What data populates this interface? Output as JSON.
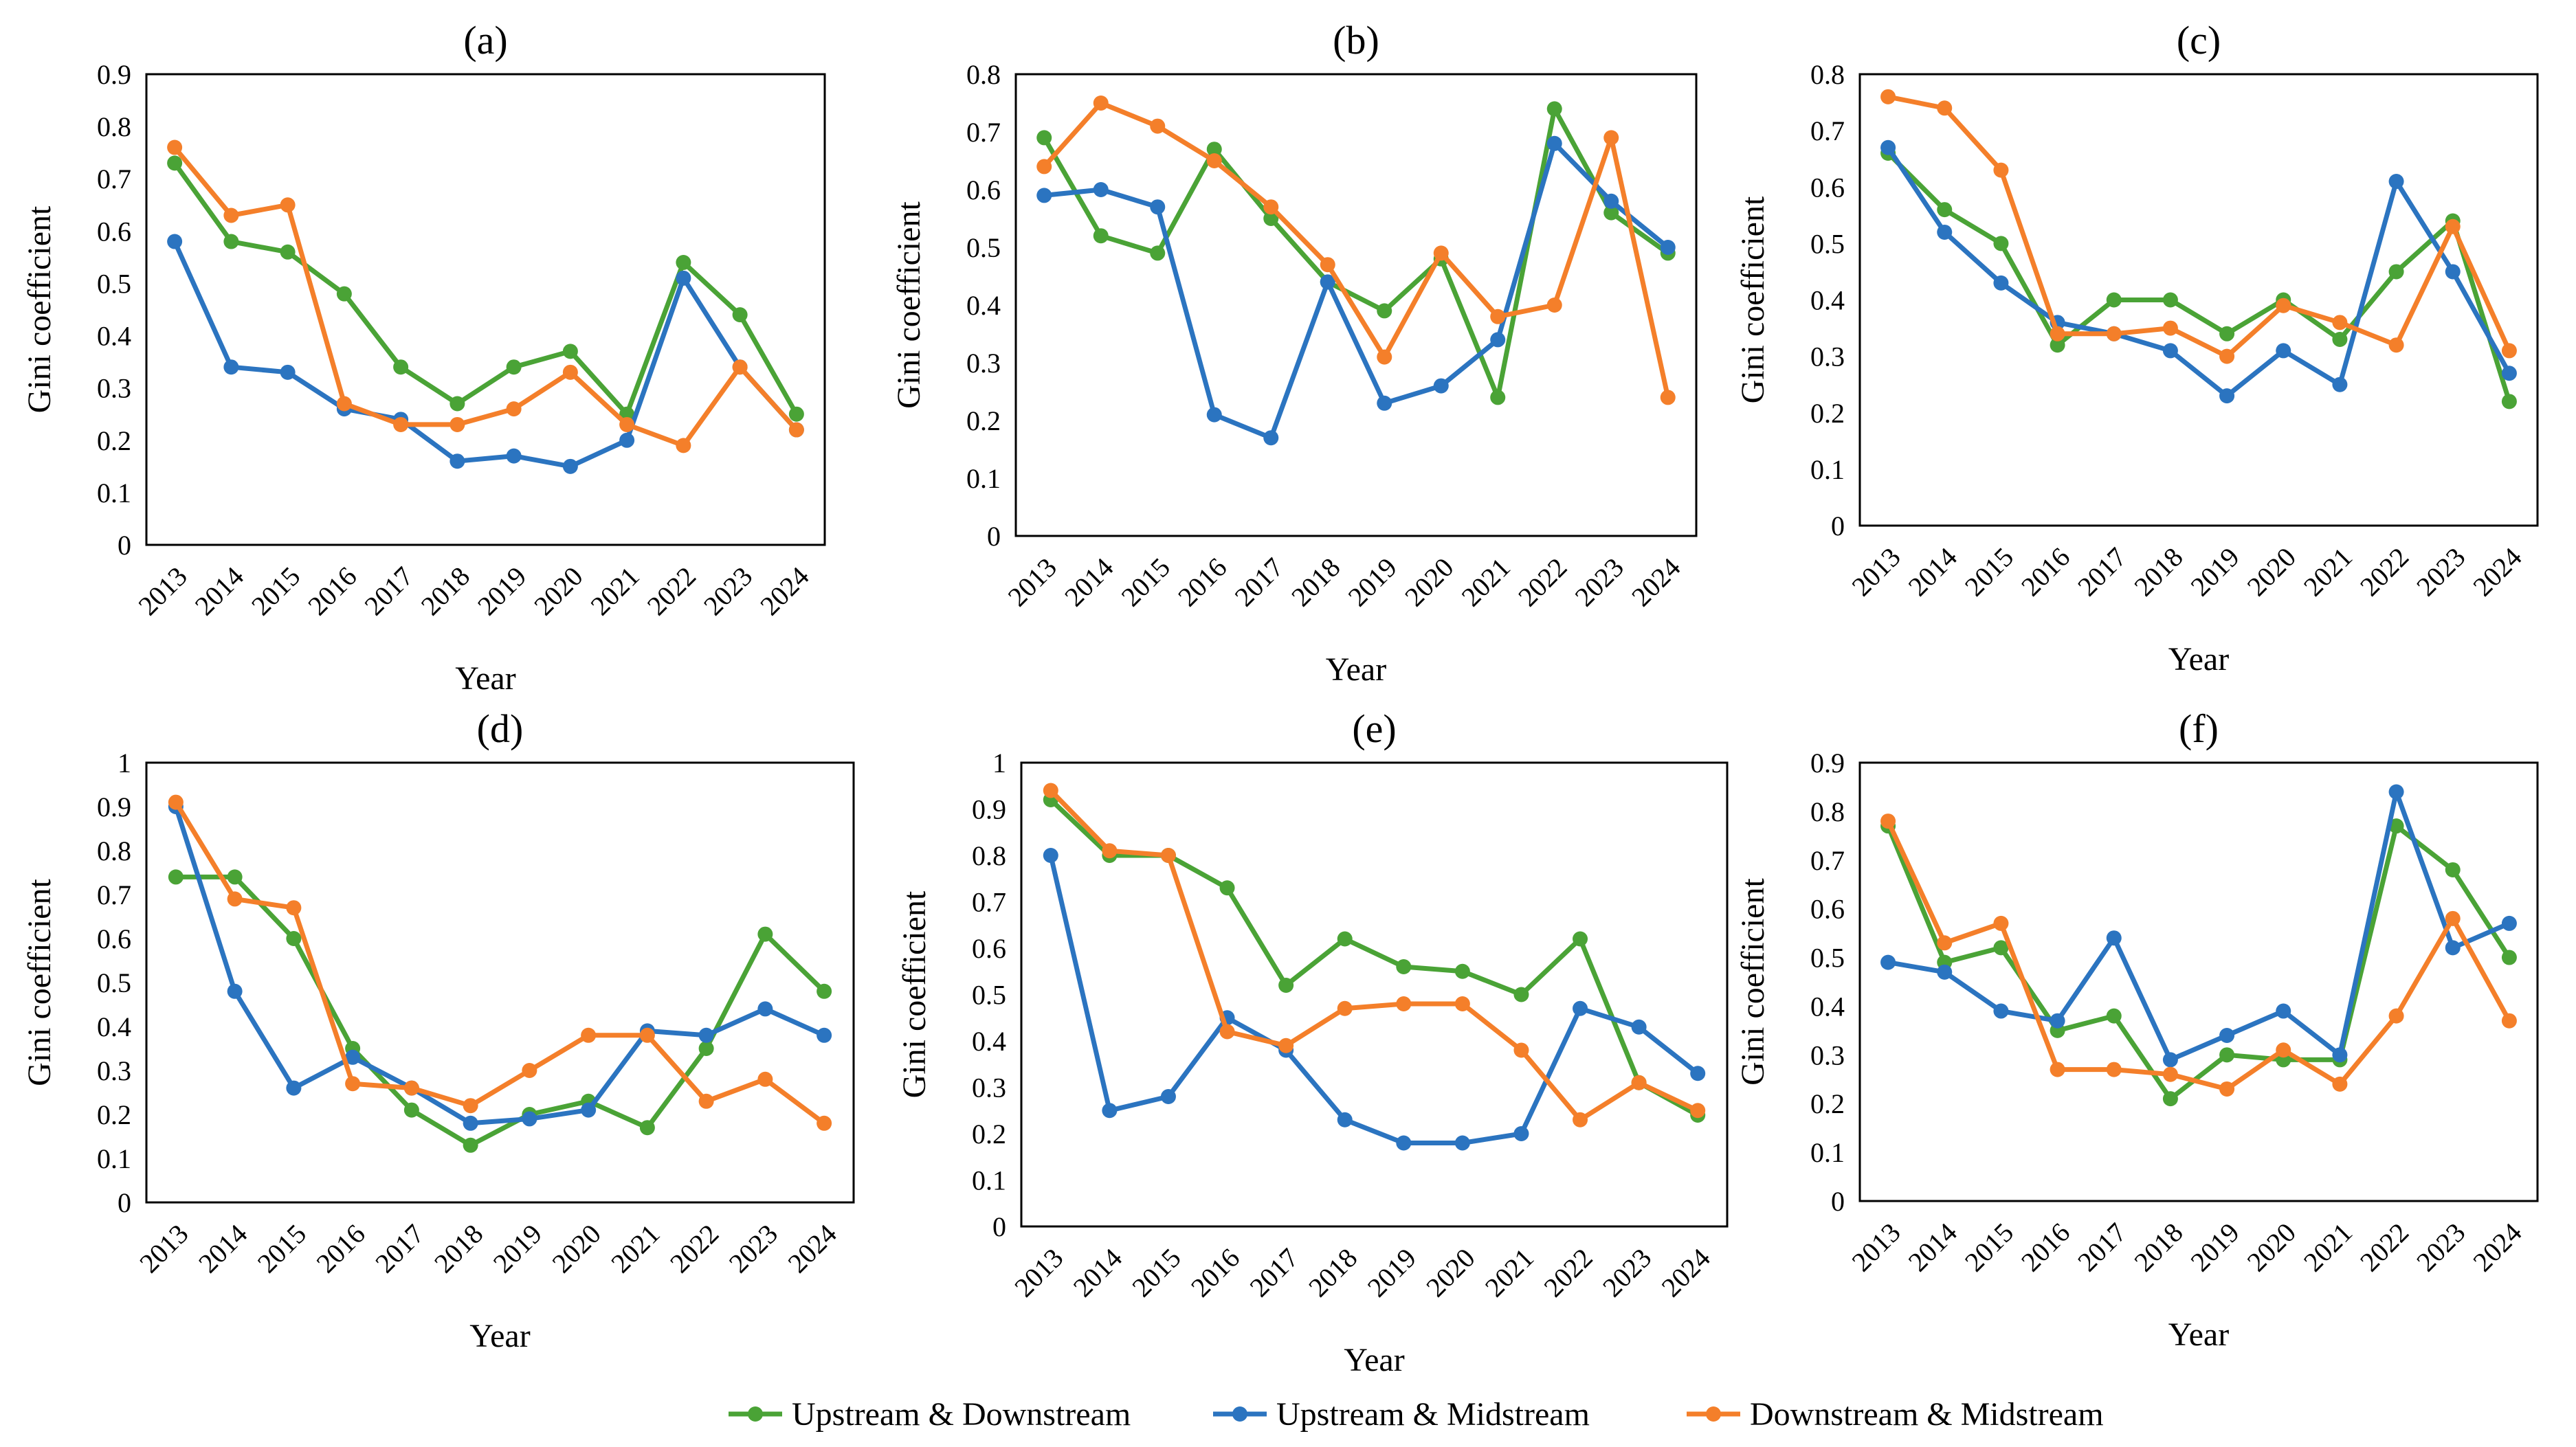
{
  "colors": {
    "Upstream & Downstream": "#4aa336",
    "Upstream & Midstream": "#2b74c0",
    "Downstream & Midstream": "#f47f2a"
  },
  "legend": {
    "items": [
      "Upstream & Downstream",
      "Upstream & Midstream",
      "Downstream & Midstream"
    ]
  },
  "chart_data": [
    {
      "type": "line",
      "title": "(a)",
      "xlabel": "Year",
      "ylabel": "Gini coefficient",
      "ylim": [
        0,
        0.9
      ],
      "yticks": [
        "0",
        "0.1",
        "0.2",
        "0.3",
        "0.4",
        "0.5",
        "0.6",
        "0.7",
        "0.8",
        "0.9"
      ],
      "categories": [
        "2013",
        "2014",
        "2015",
        "2016",
        "2017",
        "2018",
        "2019",
        "2020",
        "2021",
        "2022",
        "2023",
        "2024"
      ],
      "series": [
        {
          "name": "Upstream & Downstream",
          "values": [
            0.73,
            0.58,
            0.56,
            0.48,
            0.34,
            0.27,
            0.34,
            0.37,
            0.25,
            0.54,
            0.44,
            0.25
          ]
        },
        {
          "name": "Upstream & Midstream",
          "values": [
            0.58,
            0.34,
            0.33,
            0.26,
            0.24,
            0.16,
            0.17,
            0.15,
            0.2,
            0.51,
            0.34,
            0.22
          ]
        },
        {
          "name": "Downstream & Midstream",
          "values": [
            0.76,
            0.63,
            0.65,
            0.27,
            0.23,
            0.23,
            0.26,
            0.33,
            0.23,
            0.19,
            0.34,
            0.22
          ]
        }
      ]
    },
    {
      "type": "line",
      "title": "(b)",
      "xlabel": "Year",
      "ylabel": "Gini coefficient",
      "ylim": [
        0,
        0.8
      ],
      "yticks": [
        "0",
        "0.1",
        "0.2",
        "0.3",
        "0.4",
        "0.5",
        "0.6",
        "0.7",
        "0.8"
      ],
      "categories": [
        "2013",
        "2014",
        "2015",
        "2016",
        "2017",
        "2018",
        "2019",
        "2020",
        "2021",
        "2022",
        "2023",
        "2024"
      ],
      "series": [
        {
          "name": "Upstream & Downstream",
          "values": [
            0.69,
            0.52,
            0.49,
            0.67,
            0.55,
            0.44,
            0.39,
            0.48,
            0.24,
            0.74,
            0.56,
            0.49
          ]
        },
        {
          "name": "Upstream & Midstream",
          "values": [
            0.59,
            0.6,
            0.57,
            0.21,
            0.17,
            0.44,
            0.23,
            0.26,
            0.34,
            0.68,
            0.58,
            0.5
          ]
        },
        {
          "name": "Downstream & Midstream",
          "values": [
            0.64,
            0.75,
            0.71,
            0.65,
            0.57,
            0.47,
            0.31,
            0.49,
            0.38,
            0.4,
            0.69,
            0.24
          ]
        }
      ]
    },
    {
      "type": "line",
      "title": "(c)",
      "xlabel": "Year",
      "ylabel": "Gini coefficient",
      "ylim": [
        0,
        0.8
      ],
      "yticks": [
        "0",
        "0.1",
        "0.2",
        "0.3",
        "0.4",
        "0.5",
        "0.6",
        "0.7",
        "0.8"
      ],
      "categories": [
        "2013",
        "2014",
        "2015",
        "2016",
        "2017",
        "2018",
        "2019",
        "2020",
        "2021",
        "2022",
        "2023",
        "2024"
      ],
      "series": [
        {
          "name": "Upstream & Downstream",
          "values": [
            0.66,
            0.56,
            0.5,
            0.32,
            0.4,
            0.4,
            0.34,
            0.4,
            0.33,
            0.45,
            0.54,
            0.22
          ]
        },
        {
          "name": "Upstream & Midstream",
          "values": [
            0.67,
            0.52,
            0.43,
            0.36,
            0.34,
            0.31,
            0.23,
            0.31,
            0.25,
            0.61,
            0.45,
            0.27
          ]
        },
        {
          "name": "Downstream & Midstream",
          "values": [
            0.76,
            0.74,
            0.63,
            0.34,
            0.34,
            0.35,
            0.3,
            0.39,
            0.36,
            0.32,
            0.53,
            0.31
          ]
        }
      ]
    },
    {
      "type": "line",
      "title": "(d)",
      "xlabel": "Year",
      "ylabel": "Gini coefficient",
      "ylim": [
        0,
        1
      ],
      "yticks": [
        "0",
        "0.1",
        "0.2",
        "0.3",
        "0.4",
        "0.5",
        "0.6",
        "0.7",
        "0.8",
        "0.9",
        "1"
      ],
      "categories": [
        "2013",
        "2014",
        "2015",
        "2016",
        "2017",
        "2018",
        "2019",
        "2020",
        "2021",
        "2022",
        "2023",
        "2024"
      ],
      "series": [
        {
          "name": "Upstream & Downstream",
          "values": [
            0.74,
            0.74,
            0.6,
            0.35,
            0.21,
            0.13,
            0.2,
            0.23,
            0.17,
            0.35,
            0.61,
            0.48
          ]
        },
        {
          "name": "Upstream & Midstream",
          "values": [
            0.9,
            0.48,
            0.26,
            0.33,
            0.26,
            0.18,
            0.19,
            0.21,
            0.39,
            0.38,
            0.44,
            0.38
          ]
        },
        {
          "name": "Downstream & Midstream",
          "values": [
            0.91,
            0.69,
            0.67,
            0.27,
            0.26,
            0.22,
            0.3,
            0.38,
            0.38,
            0.23,
            0.28,
            0.18
          ]
        }
      ]
    },
    {
      "type": "line",
      "title": "(e)",
      "xlabel": "Year",
      "ylabel": "Gini coefficient",
      "ylim": [
        0,
        1
      ],
      "yticks": [
        "0",
        "0.1",
        "0.2",
        "0.3",
        "0.4",
        "0.5",
        "0.6",
        "0.7",
        "0.8",
        "0.9",
        "1"
      ],
      "categories": [
        "2013",
        "2014",
        "2015",
        "2016",
        "2017",
        "2018",
        "2019",
        "2020",
        "2021",
        "2022",
        "2023",
        "2024"
      ],
      "series": [
        {
          "name": "Upstream & Downstream",
          "values": [
            0.92,
            0.8,
            0.8,
            0.73,
            0.52,
            0.62,
            0.56,
            0.55,
            0.5,
            0.62,
            0.31,
            0.24
          ]
        },
        {
          "name": "Upstream & Midstream",
          "values": [
            0.8,
            0.25,
            0.28,
            0.45,
            0.38,
            0.23,
            0.18,
            0.18,
            0.2,
            0.47,
            0.43,
            0.33
          ]
        },
        {
          "name": "Downstream & Midstream",
          "values": [
            0.94,
            0.81,
            0.8,
            0.42,
            0.39,
            0.47,
            0.48,
            0.48,
            0.38,
            0.23,
            0.31,
            0.25
          ]
        }
      ]
    },
    {
      "type": "line",
      "title": "(f)",
      "xlabel": "Year",
      "ylabel": "Gini coefficient",
      "ylim": [
        0,
        0.9
      ],
      "yticks": [
        "0",
        "0.1",
        "0.2",
        "0.3",
        "0.4",
        "0.5",
        "0.6",
        "0.7",
        "0.8",
        "0.9"
      ],
      "categories": [
        "2013",
        "2014",
        "2015",
        "2016",
        "2017",
        "2018",
        "2019",
        "2020",
        "2021",
        "2022",
        "2023",
        "2024"
      ],
      "series": [
        {
          "name": "Upstream & Downstream",
          "values": [
            0.77,
            0.49,
            0.52,
            0.35,
            0.38,
            0.21,
            0.3,
            0.29,
            0.29,
            0.77,
            0.68,
            0.5
          ]
        },
        {
          "name": "Upstream & Midstream",
          "values": [
            0.49,
            0.47,
            0.39,
            0.37,
            0.54,
            0.29,
            0.34,
            0.39,
            0.3,
            0.84,
            0.52,
            0.57
          ]
        },
        {
          "name": "Downstream & Midstream",
          "values": [
            0.78,
            0.53,
            0.57,
            0.27,
            0.27,
            0.26,
            0.23,
            0.31,
            0.24,
            0.38,
            0.58,
            0.37
          ]
        }
      ]
    }
  ]
}
